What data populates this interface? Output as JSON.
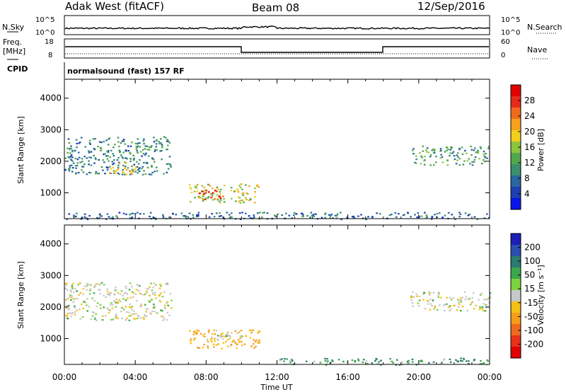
{
  "header": {
    "station": "Adak West (fitACF)",
    "beam": "Beam 08",
    "date": "12/Sep/2016"
  },
  "strip_labels": {
    "nsky": "N.Sky",
    "nsearch": "N.Search",
    "freq": "Freq.",
    "freq_unit": "[MHz]",
    "nave": "Nave",
    "cpid": "CPID",
    "cpid_value": "normalsound (fast) 157 RF"
  },
  "noise_ticks": {
    "left": [
      "10^5",
      "10^0"
    ],
    "right": [
      "10^5",
      "10^0"
    ]
  },
  "freq_ticks": {
    "left": [
      "18",
      "8"
    ],
    "right": [
      "60",
      "0"
    ]
  },
  "colors": {
    "frame": "#000000",
    "power_scale": [
      "#0b14e8",
      "#1d3fb0",
      "#2a66a0",
      "#3b8f6f",
      "#52a84e",
      "#8cc63f",
      "#f2cf1b",
      "#f7a21c",
      "#f06a1e",
      "#e82a1c",
      "#e00000"
    ],
    "velocity_scale": [
      "#1d1db8",
      "#2a4fb0",
      "#2b7a6f",
      "#3aa84a",
      "#7dd33f",
      "#c8c8c8",
      "#f5c016",
      "#f79c1a",
      "#f06a1e",
      "#e8321c",
      "#e00000"
    ]
  },
  "chart_data": [
    {
      "type": "heatmap",
      "name": "power",
      "xlabel": "Time UT",
      "ylabel": "Slant Range [km]",
      "colorbar_label": "Power [dB]",
      "colorbar_ticks": [
        "28",
        "24",
        "20",
        "16",
        "12",
        "8",
        "4"
      ],
      "x_ticks": [
        "00:00",
        "04:00",
        "08:00",
        "12:00",
        "16:00",
        "20:00",
        "00:00"
      ],
      "y_ticks": [
        "1000",
        "2000",
        "3000",
        "4000"
      ],
      "xlim_hours": [
        0,
        24
      ],
      "ylim_km": [
        180,
        4600
      ],
      "regions": [
        {
          "t_start": 0.0,
          "t_end": 6.0,
          "r_low": 1600,
          "r_high": 2800,
          "power_db": 8
        },
        {
          "t_start": 2.5,
          "t_end": 4.0,
          "r_low": 1600,
          "r_high": 2000,
          "power_db": 18
        },
        {
          "t_start": 7.0,
          "t_end": 11.0,
          "r_low": 700,
          "r_high": 1300,
          "power_db": 16
        },
        {
          "t_start": 7.5,
          "t_end": 9.0,
          "r_low": 800,
          "r_high": 1100,
          "power_db": 28
        },
        {
          "t_start": 19.5,
          "t_end": 24.0,
          "r_low": 1900,
          "r_high": 2500,
          "power_db": 10
        },
        {
          "t_start": 0.0,
          "t_end": 24.0,
          "r_low": 180,
          "r_high": 400,
          "power_db": 6
        }
      ]
    },
    {
      "type": "heatmap",
      "name": "velocity",
      "xlabel": "Time UT",
      "ylabel": "Slant Range [km]",
      "colorbar_label": "Velocity [m s⁻¹]",
      "colorbar_ticks": [
        "200",
        "100",
        "50",
        "15",
        "-15",
        "-50",
        "-100",
        "-200"
      ],
      "x_ticks": [
        "00:00",
        "04:00",
        "08:00",
        "12:00",
        "16:00",
        "20:00",
        "00:00"
      ],
      "y_ticks": [
        "1000",
        "2000",
        "3000",
        "4000"
      ],
      "xlim_hours": [
        0,
        24
      ],
      "ylim_km": [
        180,
        4600
      ],
      "regions": [
        {
          "t_start": 0.0,
          "t_end": 6.0,
          "r_low": 1600,
          "r_high": 2800,
          "velocity_ms": 0
        },
        {
          "t_start": 7.0,
          "t_end": 11.0,
          "r_low": 700,
          "r_high": 1300,
          "velocity_ms": -30
        },
        {
          "t_start": 8.0,
          "t_end": 10.0,
          "r_low": 900,
          "r_high": 1200,
          "velocity_ms": 0
        },
        {
          "t_start": 19.5,
          "t_end": 24.0,
          "r_low": 1900,
          "r_high": 2500,
          "velocity_ms": 0
        },
        {
          "t_start": 12.0,
          "t_end": 24.0,
          "r_low": 180,
          "r_high": 400,
          "velocity_ms": 30
        }
      ]
    }
  ]
}
